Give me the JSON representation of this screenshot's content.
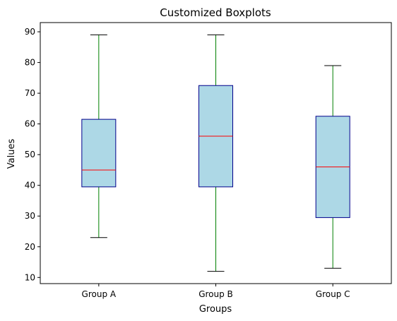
{
  "chart_data": {
    "type": "boxplot",
    "title": "Customized Boxplots",
    "xlabel": "Groups",
    "ylabel": "Values",
    "ylim": [
      8,
      93
    ],
    "yticks": [
      10,
      20,
      30,
      40,
      50,
      60,
      70,
      80,
      90
    ],
    "categories": [
      "Group A",
      "Group B",
      "Group C"
    ],
    "boxes": [
      {
        "category": "Group A",
        "whisker_low": 23,
        "q1": 39.5,
        "median": 45,
        "q3": 61.5,
        "whisker_high": 89
      },
      {
        "category": "Group B",
        "whisker_low": 12,
        "q1": 39.5,
        "median": 56,
        "q3": 72.5,
        "whisker_high": 89
      },
      {
        "category": "Group C",
        "whisker_low": 13,
        "q1": 29.5,
        "median": 46,
        "q3": 62.5,
        "whisker_high": 79
      }
    ],
    "grid": false,
    "colors": {
      "box_fill": "#add8e6",
      "box_edge": "#00008b",
      "median": "#ff0000",
      "whisker": "#008000",
      "cap": "#000000"
    }
  }
}
